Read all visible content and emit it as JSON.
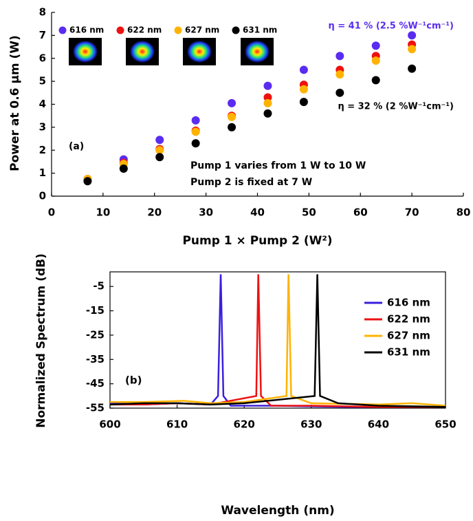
{
  "chart_data": [
    {
      "type": "scatter",
      "y_label": "Power at 0.6 μm (W)",
      "x_label": "Pump 1 × Pump 2 (W²)",
      "xlim": [
        0,
        80
      ],
      "xticks": [
        0,
        10,
        20,
        30,
        40,
        50,
        60,
        70,
        80
      ],
      "ylim": [
        0,
        8
      ],
      "yticks": [
        0,
        1,
        2,
        3,
        4,
        5,
        6,
        7,
        8
      ],
      "annotations": [
        "η = 41 % (2.5 %W⁻¹cm⁻¹)",
        "η = 32 % (2 %W⁻¹cm⁻¹)",
        "(a)",
        "Pump 1 varies from 1 W to 10 W",
        "Pump 2 is fixed at 7 W"
      ],
      "x": [
        7,
        14,
        21,
        28,
        35,
        42,
        49,
        56,
        63,
        70
      ],
      "series": [
        {
          "name": "616 nm",
          "color": "#5a2cf0",
          "values": [
            0.75,
            1.6,
            2.45,
            3.3,
            4.05,
            4.8,
            5.5,
            6.1,
            6.55,
            7.0
          ]
        },
        {
          "name": "622 nm",
          "color": "#ee1111",
          "values": [
            0.7,
            1.45,
            2.05,
            2.85,
            3.5,
            4.3,
            4.85,
            5.5,
            6.1,
            6.6
          ]
        },
        {
          "name": "627 nm",
          "color": "#ffb300",
          "values": [
            0.75,
            1.4,
            2.0,
            2.8,
            3.45,
            4.05,
            4.65,
            5.3,
            5.9,
            6.4
          ]
        },
        {
          "name": "631 nm",
          "color": "#000000",
          "values": [
            0.65,
            1.2,
            1.7,
            2.3,
            3.0,
            3.6,
            4.1,
            4.5,
            5.05,
            5.55
          ]
        }
      ]
    },
    {
      "type": "line",
      "y_label": "Normalized Spectrum (dB)",
      "x_label": "Wavelength (nm)",
      "xlim": [
        600,
        650
      ],
      "xticks": [
        600,
        610,
        620,
        630,
        640,
        650
      ],
      "ylim": [
        -55,
        1
      ],
      "yticks": [
        -55,
        -45,
        -35,
        -25,
        -15,
        -5
      ],
      "annotations": [
        "(b)"
      ],
      "series": [
        {
          "name": "616 nm",
          "color": "#3a1fdd",
          "x": [
            600,
            605,
            610,
            615,
            616.1,
            616.5,
            616.9,
            618,
            625,
            635,
            650
          ],
          "values": [
            -53,
            -53.5,
            -53,
            -53.5,
            -50,
            0,
            -50,
            -54,
            -54,
            -54.5,
            -54.5
          ]
        },
        {
          "name": "622 nm",
          "color": "#ee1111",
          "x": [
            600,
            605,
            610,
            615,
            621.8,
            622.1,
            622.5,
            624,
            630,
            640,
            650
          ],
          "values": [
            -53.5,
            -53.5,
            -53,
            -53.5,
            -50,
            0,
            -50,
            -54,
            -54,
            -54.5,
            -54.5
          ]
        },
        {
          "name": "627 nm",
          "color": "#ffb300",
          "x": [
            600,
            605,
            611,
            615,
            620,
            626.3,
            626.6,
            627,
            630,
            640,
            645,
            650
          ],
          "values": [
            -52.5,
            -52.5,
            -52,
            -53,
            -52.5,
            -50,
            0,
            -50,
            -53,
            -53.5,
            -53,
            -54
          ]
        },
        {
          "name": "631 nm",
          "color": "#000000",
          "x": [
            600,
            605,
            610,
            615,
            620,
            630.5,
            630.9,
            631.3,
            634,
            640,
            650
          ],
          "values": [
            -53.5,
            -53,
            -53,
            -53.5,
            -53,
            -50,
            0,
            -50,
            -53,
            -54,
            -54.5
          ]
        }
      ]
    }
  ]
}
